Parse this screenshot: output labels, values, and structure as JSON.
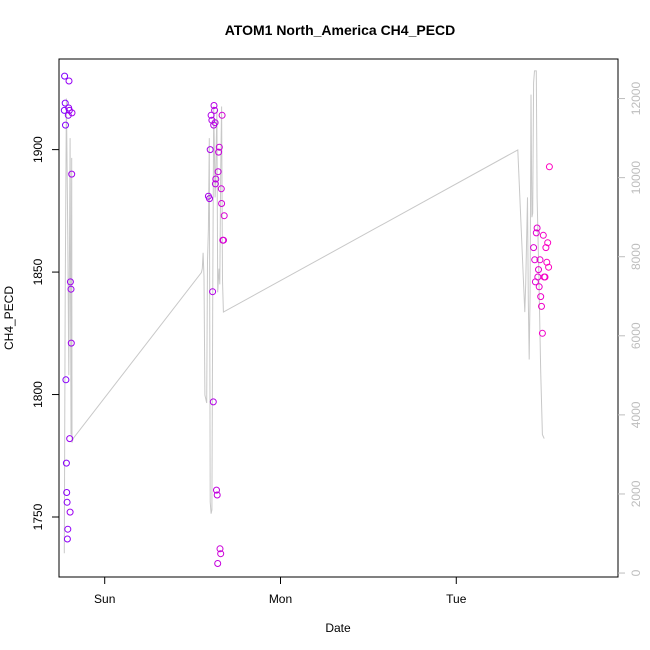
{
  "chart_data": {
    "type": "scatter",
    "title": "ATOM1 North_America CH4_PECD",
    "xlabel": "Date",
    "ylabel": "CH4_PECD",
    "x_unit": "days since Sat 00:00",
    "xlim": [
      1.74,
      4.92
    ],
    "x_ticks": [
      {
        "value": 2,
        "label": "Sun"
      },
      {
        "value": 3,
        "label": "Mon"
      },
      {
        "value": 4,
        "label": "Tue"
      }
    ],
    "ylim": [
      1725.5,
      1937
    ],
    "y_ticks": [
      1750,
      1800,
      1850,
      1900
    ],
    "y2lim": [
      -100,
      13000
    ],
    "y2_ticks": [
      0,
      2000,
      4000,
      6000,
      8000,
      10000,
      12000
    ],
    "grid": false,
    "legend": "none",
    "colors": {
      "frame": "#000000",
      "line": "#c8c8c8",
      "right_axis": "#bdbdbd",
      "points_start": "#7f00ff",
      "points_end": "#ff00c0"
    },
    "series": [
      {
        "kind": "points",
        "axis": "left",
        "x": [
          1.77,
          1.772,
          1.775,
          1.777,
          1.779,
          1.782,
          1.784,
          1.786,
          1.788,
          1.79,
          1.793,
          1.795,
          1.797,
          1.799,
          1.801,
          1.803,
          1.805,
          1.808,
          1.81,
          1.812,
          1.814,
          2.59,
          2.596,
          2.6,
          2.605,
          2.61,
          2.614,
          2.618,
          2.62,
          2.622,
          2.625,
          2.628,
          2.63,
          2.632,
          2.636,
          2.64,
          2.643,
          2.645,
          2.648,
          2.652,
          2.656,
          2.66,
          2.663,
          2.665,
          2.668,
          2.672,
          2.676,
          2.68,
          4.44,
          4.446,
          4.45,
          4.455,
          4.46,
          4.464,
          4.468,
          4.472,
          4.476,
          4.48,
          4.485,
          4.49,
          4.495,
          4.5,
          4.505,
          4.51,
          4.515,
          4.52,
          4.525,
          4.53
        ],
        "y": [
          1916,
          1930,
          1919,
          1910,
          1806,
          1772,
          1760,
          1756,
          1741,
          1745,
          1914,
          1917,
          1928,
          1916,
          1782,
          1752,
          1846,
          1843,
          1821,
          1890,
          1915,
          1881,
          1880,
          1900,
          1914,
          1912,
          1842,
          1797,
          1910,
          1918,
          1916,
          1911,
          1886,
          1888,
          1761,
          1759,
          1731,
          1891,
          1899,
          1901,
          1737,
          1735,
          1884,
          1878,
          1914,
          1863,
          1863,
          1873,
          1860,
          1855,
          1846,
          1866,
          1868,
          1848,
          1851,
          1844,
          1855,
          1840,
          1836,
          1825,
          1865,
          1848,
          1848,
          1860,
          1854,
          1862,
          1852,
          1893
        ]
      },
      {
        "kind": "line",
        "axis": "right",
        "x": [
          1.77,
          1.775,
          1.782,
          1.79,
          1.796,
          1.803,
          1.808,
          1.812,
          1.814,
          1.82,
          2.55,
          2.555,
          2.56,
          2.565,
          2.57,
          2.58,
          2.585,
          2.59,
          2.595,
          2.6,
          2.605,
          2.61,
          2.615,
          2.62,
          2.628,
          2.632,
          2.638,
          2.643,
          2.65,
          2.655,
          2.66,
          2.665,
          2.67,
          2.675,
          4.35,
          4.39,
          4.395,
          4.405,
          4.41,
          4.415,
          4.42,
          4.425,
          4.43,
          4.435,
          4.44,
          4.445,
          4.45,
          4.455,
          4.46,
          4.47,
          4.48,
          4.49,
          4.5
        ],
        "y": [
          500,
          7000,
          12000,
          8500,
          5000,
          11000,
          3500,
          10500,
          3300,
          3400,
          7600,
          7700,
          8100,
          7500,
          4500,
          4300,
          7900,
          8700,
          11000,
          1800,
          1500,
          1600,
          7400,
          11800,
          9500,
          10200,
          11700,
          7100,
          7700,
          7300,
          10200,
          11800,
          7400,
          6600,
          10700,
          6600,
          7300,
          9500,
          6900,
          5400,
          7100,
          12100,
          9000,
          9100,
          12400,
          12700,
          12700,
          12700,
          9500,
          7500,
          5100,
          3500,
          3400
        ]
      }
    ]
  }
}
